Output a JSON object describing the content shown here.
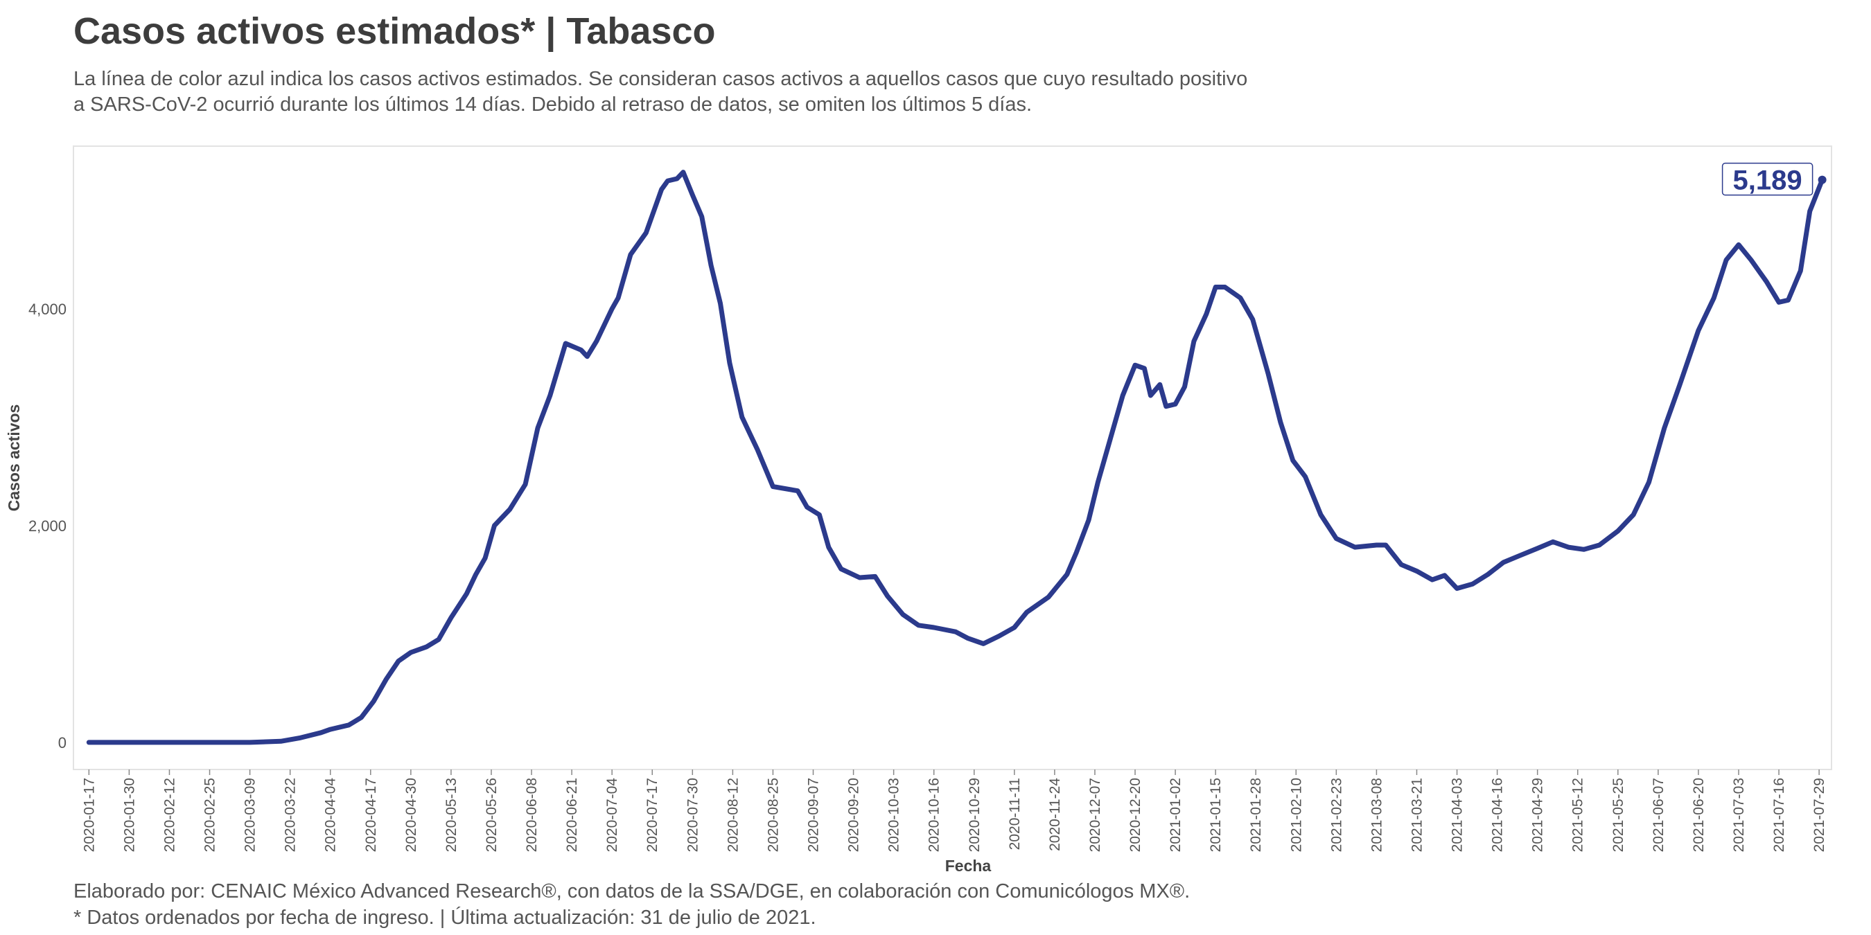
{
  "title": "Casos activos estimados* | Tabasco",
  "subtitle": "La línea de color azul indica los casos activos estimados. Se consideran casos activos a aquellos casos que cuyo resultado positivo\na SARS-CoV-2 ocurrió durante los últimos 14 días. Debido al retraso de datos, se omiten los últimos 5 días.",
  "footer": "Elaborado por: CENAIC México Advanced Research®, con datos de la SSA/DGE, en colaboración con Comunicólogos MX®.\n* Datos ordenados por fecha de ingreso. | Última actualización: 31 de julio de 2021.",
  "colors": {
    "line": "#2b3a8c",
    "panel_border": "#e3e3e3",
    "text": "#3d3d3d"
  },
  "chart_data": {
    "type": "line",
    "title": "Casos activos estimados* | Tabasco",
    "xlabel": "Fecha",
    "ylabel": "Casos activos",
    "xlim": [
      "2020-01-12",
      "2021-08-02"
    ],
    "ylim": [
      -250,
      5500
    ],
    "y_ticks": [
      0,
      2000,
      4000
    ],
    "y_tick_labels": [
      "0",
      "2,000",
      "4,000"
    ],
    "x_ticks": [
      "2020-01-17",
      "2020-01-30",
      "2020-02-12",
      "2020-02-25",
      "2020-03-09",
      "2020-03-22",
      "2020-04-04",
      "2020-04-17",
      "2020-04-30",
      "2020-05-13",
      "2020-05-26",
      "2020-06-08",
      "2020-06-21",
      "2020-07-04",
      "2020-07-17",
      "2020-07-30",
      "2020-08-12",
      "2020-08-25",
      "2020-09-07",
      "2020-09-20",
      "2020-10-03",
      "2020-10-16",
      "2020-10-29",
      "2020-11-11",
      "2020-11-24",
      "2020-12-07",
      "2020-12-20",
      "2021-01-02",
      "2021-01-15",
      "2021-01-28",
      "2021-02-10",
      "2021-02-23",
      "2021-03-08",
      "2021-03-21",
      "2021-04-03",
      "2021-04-16",
      "2021-04-29",
      "2021-05-12",
      "2021-05-25",
      "2021-06-07",
      "2021-06-20",
      "2021-07-03",
      "2021-07-16",
      "2021-07-29"
    ],
    "grid": false,
    "legend": "none",
    "end_label": "5,189",
    "series": [
      {
        "color": "#2b3a8c",
        "points": [
          [
            "2020-01-17",
            0
          ],
          [
            "2020-03-09",
            0
          ],
          [
            "2020-03-19",
            10
          ],
          [
            "2020-03-25",
            40
          ],
          [
            "2020-04-01",
            90
          ],
          [
            "2020-04-04",
            120
          ],
          [
            "2020-04-10",
            160
          ],
          [
            "2020-04-14",
            230
          ],
          [
            "2020-04-18",
            380
          ],
          [
            "2020-04-22",
            580
          ],
          [
            "2020-04-26",
            750
          ],
          [
            "2020-04-30",
            830
          ],
          [
            "2020-05-05",
            880
          ],
          [
            "2020-05-09",
            950
          ],
          [
            "2020-05-13",
            1150
          ],
          [
            "2020-05-18",
            1370
          ],
          [
            "2020-05-21",
            1550
          ],
          [
            "2020-05-24",
            1700
          ],
          [
            "2020-05-27",
            2000
          ],
          [
            "2020-06-01",
            2150
          ],
          [
            "2020-06-06",
            2380
          ],
          [
            "2020-06-10",
            2900
          ],
          [
            "2020-06-14",
            3200
          ],
          [
            "2020-06-19",
            3680
          ],
          [
            "2020-06-24",
            3620
          ],
          [
            "2020-06-26",
            3560
          ],
          [
            "2020-06-29",
            3700
          ],
          [
            "2020-07-04",
            4000
          ],
          [
            "2020-07-06",
            4100
          ],
          [
            "2020-07-10",
            4500
          ],
          [
            "2020-07-15",
            4700
          ],
          [
            "2020-07-20",
            5100
          ],
          [
            "2020-07-22",
            5180
          ],
          [
            "2020-07-25",
            5200
          ],
          [
            "2020-07-27",
            5260
          ],
          [
            "2020-07-30",
            5050
          ],
          [
            "2020-08-02",
            4850
          ],
          [
            "2020-08-05",
            4400
          ],
          [
            "2020-08-08",
            4050
          ],
          [
            "2020-08-11",
            3500
          ],
          [
            "2020-08-15",
            3000
          ],
          [
            "2020-08-20",
            2700
          ],
          [
            "2020-08-25",
            2360
          ],
          [
            "2020-09-02",
            2320
          ],
          [
            "2020-09-05",
            2170
          ],
          [
            "2020-09-09",
            2100
          ],
          [
            "2020-09-12",
            1800
          ],
          [
            "2020-09-16",
            1600
          ],
          [
            "2020-09-22",
            1520
          ],
          [
            "2020-09-27",
            1530
          ],
          [
            "2020-10-01",
            1350
          ],
          [
            "2020-10-06",
            1180
          ],
          [
            "2020-10-11",
            1080
          ],
          [
            "2020-10-16",
            1060
          ],
          [
            "2020-10-23",
            1020
          ],
          [
            "2020-10-27",
            960
          ],
          [
            "2020-11-01",
            910
          ],
          [
            "2020-11-06",
            980
          ],
          [
            "2020-11-11",
            1060
          ],
          [
            "2020-11-15",
            1200
          ],
          [
            "2020-11-22",
            1340
          ],
          [
            "2020-11-28",
            1550
          ],
          [
            "2020-12-01",
            1750
          ],
          [
            "2020-12-05",
            2050
          ],
          [
            "2020-12-08",
            2400
          ],
          [
            "2020-12-12",
            2800
          ],
          [
            "2020-12-16",
            3200
          ],
          [
            "2020-12-20",
            3480
          ],
          [
            "2020-12-23",
            3450
          ],
          [
            "2020-12-25",
            3200
          ],
          [
            "2020-12-28",
            3300
          ],
          [
            "2020-12-30",
            3100
          ],
          [
            "2021-01-02",
            3120
          ],
          [
            "2021-01-05",
            3280
          ],
          [
            "2021-01-08",
            3700
          ],
          [
            "2021-01-12",
            3950
          ],
          [
            "2021-01-15",
            4200
          ],
          [
            "2021-01-18",
            4200
          ],
          [
            "2021-01-23",
            4100
          ],
          [
            "2021-01-27",
            3900
          ],
          [
            "2021-02-01",
            3400
          ],
          [
            "2021-02-05",
            2950
          ],
          [
            "2021-02-09",
            2600
          ],
          [
            "2021-02-13",
            2450
          ],
          [
            "2021-02-18",
            2100
          ],
          [
            "2021-02-23",
            1880
          ],
          [
            "2021-03-01",
            1800
          ],
          [
            "2021-03-08",
            1820
          ],
          [
            "2021-03-11",
            1820
          ],
          [
            "2021-03-16",
            1640
          ],
          [
            "2021-03-21",
            1580
          ],
          [
            "2021-03-26",
            1500
          ],
          [
            "2021-03-30",
            1540
          ],
          [
            "2021-04-03",
            1420
          ],
          [
            "2021-04-08",
            1460
          ],
          [
            "2021-04-13",
            1550
          ],
          [
            "2021-04-18",
            1660
          ],
          [
            "2021-04-23",
            1720
          ],
          [
            "2021-04-29",
            1790
          ],
          [
            "2021-05-04",
            1850
          ],
          [
            "2021-05-09",
            1800
          ],
          [
            "2021-05-14",
            1780
          ],
          [
            "2021-05-19",
            1820
          ],
          [
            "2021-05-25",
            1950
          ],
          [
            "2021-05-30",
            2100
          ],
          [
            "2021-06-04",
            2400
          ],
          [
            "2021-06-09",
            2900
          ],
          [
            "2021-06-14",
            3300
          ],
          [
            "2021-06-20",
            3800
          ],
          [
            "2021-06-25",
            4100
          ],
          [
            "2021-06-29",
            4450
          ],
          [
            "2021-07-03",
            4590
          ],
          [
            "2021-07-07",
            4450
          ],
          [
            "2021-07-12",
            4250
          ],
          [
            "2021-07-16",
            4060
          ],
          [
            "2021-07-19",
            4080
          ],
          [
            "2021-07-23",
            4350
          ],
          [
            "2021-07-26",
            4900
          ],
          [
            "2021-07-30",
            5189
          ]
        ]
      }
    ]
  }
}
